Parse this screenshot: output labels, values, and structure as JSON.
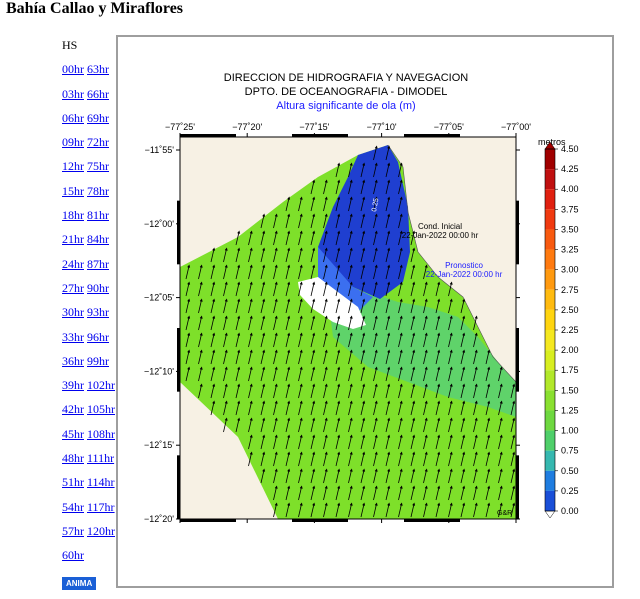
{
  "page_title": "Bahía Callao y Miraflores",
  "nav": {
    "header": "HS",
    "rows": [
      {
        "a": "00hr",
        "b": "63hr"
      },
      {
        "a": "03hr",
        "b": "66hr"
      },
      {
        "a": "06hr",
        "b": "69hr"
      },
      {
        "a": "09hr",
        "b": "72hr"
      },
      {
        "a": "12hr",
        "b": "75hr"
      },
      {
        "a": "15hr",
        "b": "78hr"
      },
      {
        "a": "18hr",
        "b": "81hr"
      },
      {
        "a": "21hr",
        "b": "84hr"
      },
      {
        "a": "24hr",
        "b": "87hr"
      },
      {
        "a": "27hr",
        "b": "90hr"
      },
      {
        "a": "30hr",
        "b": "93hr"
      },
      {
        "a": "33hr",
        "b": "96hr"
      },
      {
        "a": "36hr",
        "b": "99hr"
      },
      {
        "a": "39hr",
        "b": "102hr"
      },
      {
        "a": "42hr",
        "b": "105hr"
      },
      {
        "a": "45hr",
        "b": "108hr"
      },
      {
        "a": "48hr",
        "b": "111hr"
      },
      {
        "a": "51hr",
        "b": "114hr"
      },
      {
        "a": "54hr",
        "b": "117hr"
      },
      {
        "a": "57hr",
        "b": "120hr"
      },
      {
        "a": "60hr",
        "b": ""
      }
    ],
    "anima_label": "ANIMA"
  },
  "map": {
    "title1": "DIRECCION DE HIDROGRAFIA Y NAVEGACION",
    "title2": "DPTO. DE OCEANOGRAFIA - DIMODEL",
    "title3": "Altura significante de ola (m)",
    "lon_labels": [
      "−77˚25'",
      "−77˚20'",
      "−77˚15'",
      "−77˚10'",
      "−77˚05'",
      "−77˚00'"
    ],
    "lat_labels": [
      "−11˚55'",
      "−12˚00'",
      "−12˚05'",
      "−12˚10'",
      "−12˚15'",
      "−12˚20'"
    ],
    "cond_label": "Cond. Inicial",
    "cond_date": "22-Jan-2022 00:00 hr",
    "pron_label": "Pronostico",
    "pron_date": "22-Jan-2022 00:00 hr",
    "credit": "G&R",
    "contour_label": "0.25",
    "colorbar_title": "metros",
    "colorbar_ticks": [
      "4.50",
      "4.25",
      "4.00",
      "3.75",
      "3.50",
      "3.25",
      "3.00",
      "2.75",
      "2.50",
      "2.25",
      "2.00",
      "1.75",
      "1.50",
      "1.25",
      "1.00",
      "0.75",
      "0.50",
      "0.25",
      "0.00"
    ],
    "colors": {
      "sea_green": "#7ee02a",
      "shallow_blue": "#1f3fd0",
      "land": "#f7f1e4",
      "title_blue": "#1a1aff"
    }
  }
}
